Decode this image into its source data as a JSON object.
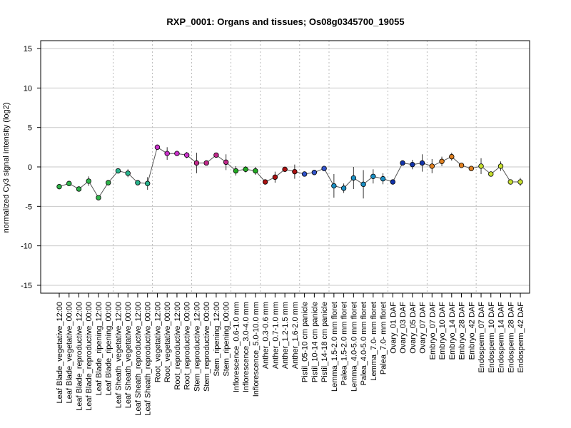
{
  "chart_data": {
    "type": "line",
    "title": "RXP_0001: Organs and tissues; Os08g0345700_19055",
    "xlabel": "",
    "ylabel": "normalized Cy3 signal intensity (log2)",
    "ylim": [
      -16,
      16
    ],
    "yticks": [
      -15,
      -10,
      -5,
      0,
      5,
      10,
      15
    ],
    "grid": true,
    "categories": [
      "Leaf Blade_vegetative_12:00",
      "Leaf Blade_vegetative_00:00",
      "Leaf Blade_reproductive_12:00",
      "Leaf Blade_reproductive_00:00",
      "Leaf Blade_ripening_12:00",
      "Leaf Blade_ripening_00:00",
      "Leaf Sheath_vegetative_12:00",
      "Leaf Sheath_vegetative_00:00",
      "Leaf Sheath_reproductive_12:00",
      "Leaf Sheath_reproductive_00:00",
      "Root_vegetative_12:00",
      "Root_vegetative_00:00",
      "Root_reproductive_12:00",
      "Root_reproductive_00:00",
      "Stem_reproductive_12:00",
      "Stem_reproductive_00:00",
      "Stem_ripening_12:00",
      "Stem_ripening_00:00",
      "Inflorescence_0.6-1.0 mm",
      "Inflorescence_3.0-4.0 mm",
      "Inflorescence_5.0-10.0 mm",
      "Anther_0.3-0.6 mm",
      "Anther_0.7-1.0 mm",
      "Anther_1.2-1.5 mm",
      "Anther_1.6-2.0 mm",
      "Pistil_05-10 cm panicle",
      "Pistil_10-14 cm panicle",
      "Pistil_14-18 cm panicle",
      "Lemma_1.5-2.0 mm floret",
      "Palea_1.5-2.0 mm floret",
      "Lemma_4.0-5.0 mm floret",
      "Palea_4.0-5.0 mm floret",
      "Lemma_7.0- mm floret",
      "Palea_7.0- mm floret",
      "Ovary_01 DAF",
      "Ovary_03 DAF",
      "Ovary_05 DAF",
      "Ovary_07 DAF",
      "Embryo_07 DAF",
      "Embryo_10 DAF",
      "Embryo_14 DAF",
      "Embryo_28 DAF",
      "Embryo_42 DAF",
      "Endosperm_07 DAF",
      "Endosperm_10 DAF",
      "Endosperm_14 DAF",
      "Endosperm_28 DAF",
      "Endosperm_42 DAF"
    ],
    "values": [
      -2.5,
      -2.1,
      -2.8,
      -1.8,
      -3.9,
      -2.0,
      -0.5,
      -0.8,
      -2.0,
      -2.1,
      2.5,
      1.7,
      1.7,
      1.5,
      0.5,
      0.5,
      1.5,
      0.6,
      -0.5,
      -0.3,
      -0.5,
      -1.9,
      -1.3,
      -0.3,
      -0.6,
      -0.9,
      -0.7,
      -0.2,
      -2.4,
      -2.7,
      -1.4,
      -2.2,
      -1.2,
      -1.5,
      -1.9,
      0.5,
      0.3,
      0.5,
      0.1,
      0.7,
      1.3,
      0.2,
      -0.2,
      0.1,
      -0.9,
      0.1,
      -1.9,
      -1.9
    ],
    "errors": [
      0.3,
      0.2,
      0.3,
      0.6,
      0.2,
      0.3,
      0.2,
      0.5,
      0.3,
      0.8,
      0.2,
      0.8,
      0.3,
      0.4,
      1.3,
      0.3,
      0.2,
      1.0,
      0.6,
      0.4,
      0.5,
      0.3,
      0.7,
      0.3,
      0.9,
      0.3,
      0.3,
      0.3,
      1.5,
      0.6,
      1.4,
      1.8,
      0.9,
      0.7,
      0.3,
      0.2,
      0.6,
      1.1,
      0.9,
      0.6,
      0.5,
      0.3,
      0.3,
      1.0,
      0.3,
      0.6,
      0.2,
      0.5
    ],
    "point_colors": [
      "#2fb34a",
      "#2fb34a",
      "#2fb34a",
      "#2fb34a",
      "#2fb34a",
      "#2fb34a",
      "#27b38c",
      "#27b38c",
      "#27b38c",
      "#27b38c",
      "#cc33cc",
      "#cc33cc",
      "#cc33cc",
      "#cc33cc",
      "#c0288a",
      "#c0288a",
      "#c0288a",
      "#c0288a",
      "#22aa22",
      "#22aa22",
      "#22aa22",
      "#aa1111",
      "#aa1111",
      "#aa1111",
      "#aa1111",
      "#3355cc",
      "#3355cc",
      "#3355cc",
      "#1b8fc4",
      "#1b8fc4",
      "#1b8fc4",
      "#1b8fc4",
      "#1b8fc4",
      "#1b8fc4",
      "#1133aa",
      "#1133aa",
      "#1133aa",
      "#1133aa",
      "#e08020",
      "#e08020",
      "#e08020",
      "#e08020",
      "#e08020",
      "#c8e030",
      "#c8e030",
      "#c8e030",
      "#c8e030",
      "#c8e030"
    ],
    "group_boundaries_after": [
      6,
      10,
      14,
      18,
      21,
      25,
      28,
      34,
      38,
      43
    ]
  }
}
